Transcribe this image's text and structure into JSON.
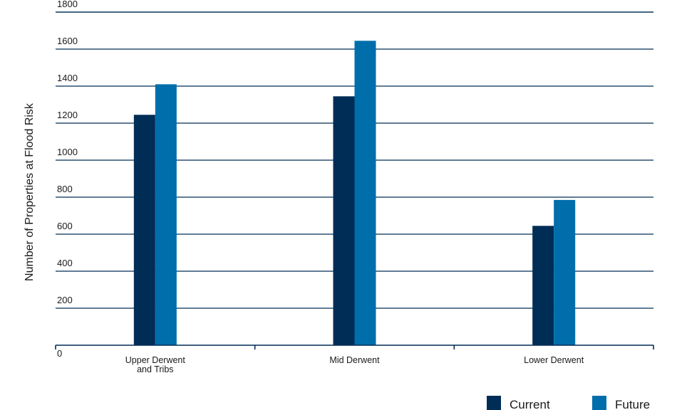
{
  "chart_data": {
    "type": "bar",
    "categories": [
      "Upper Derwent and Tribs",
      "Mid Derwent",
      "Lower Derwent"
    ],
    "category_label_lines": [
      [
        "Upper Derwent",
        "and Tribs"
      ],
      [
        "Mid Derwent"
      ],
      [
        "Lower Derwent"
      ]
    ],
    "series": [
      {
        "name": "Current",
        "values": [
          1245,
          1345,
          645
        ],
        "color": "#002d56"
      },
      {
        "name": "Future",
        "values": [
          1410,
          1645,
          785
        ],
        "color": "#006eab"
      }
    ],
    "ylabel": "Number of Properties at Flood Risk",
    "xlabel": "",
    "ylim": [
      0,
      1800
    ],
    "yticks": [
      0,
      200,
      400,
      600,
      800,
      1000,
      1200,
      1400,
      1600,
      1800
    ],
    "grid": true,
    "legend_position": "bottom-right",
    "colors": {
      "grid": "#002d56",
      "axis": "#002d56"
    }
  }
}
